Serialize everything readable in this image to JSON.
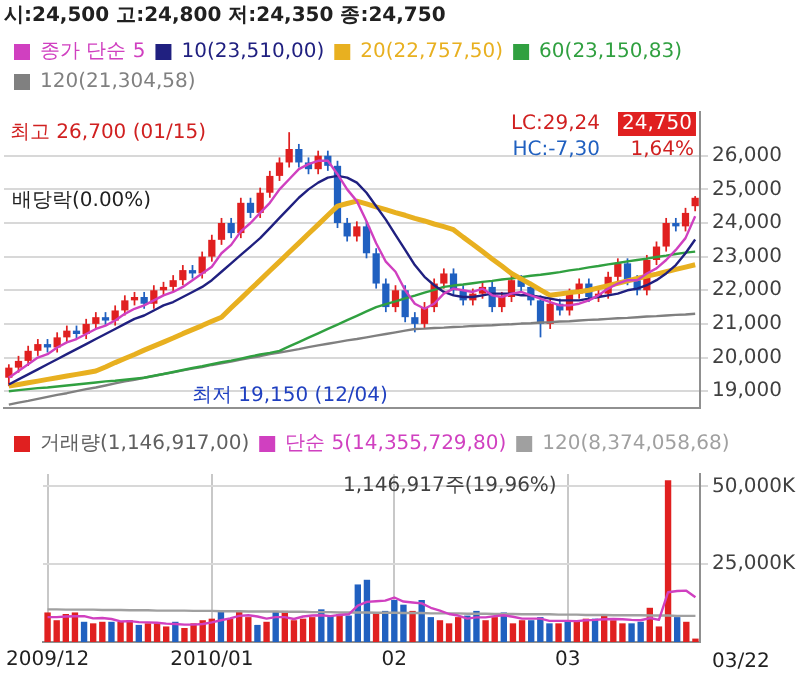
{
  "chart_data": [
    {
      "type": "candlestick",
      "title": "시:24,500 고:24,800 저:24,350 종:24,750",
      "categories": [
        null,
        null,
        null,
        null,
        null,
        null,
        null,
        null,
        null,
        null,
        null,
        null,
        null,
        null,
        null,
        null,
        null,
        null,
        null,
        null,
        null,
        null,
        null,
        null,
        null,
        null,
        null,
        null,
        null,
        null,
        null,
        null,
        null,
        null,
        null,
        null,
        null,
        null,
        null,
        null,
        null,
        null,
        null,
        null,
        null,
        null,
        null,
        null,
        null,
        null,
        null,
        null,
        null,
        null,
        null,
        null,
        null,
        null,
        null,
        null,
        null,
        null,
        null,
        null,
        null,
        null,
        null,
        null,
        null,
        null,
        null,
        null
      ],
      "ohlc": [
        [
          19400,
          19800,
          19150,
          19700
        ],
        [
          19700,
          20050,
          19550,
          19900
        ],
        [
          19900,
          20350,
          19750,
          20200
        ],
        [
          20200,
          20550,
          20050,
          20400
        ],
        [
          20400,
          20550,
          20150,
          20300
        ],
        [
          20300,
          20750,
          20150,
          20600
        ],
        [
          20600,
          20950,
          20450,
          20800
        ],
        [
          20800,
          20950,
          20550,
          20700
        ],
        [
          20700,
          21150,
          20550,
          21000
        ],
        [
          21000,
          21350,
          20850,
          21200
        ],
        [
          21200,
          21350,
          20950,
          21100
        ],
        [
          21100,
          21550,
          20950,
          21400
        ],
        [
          21400,
          21850,
          21250,
          21700
        ],
        [
          21700,
          21950,
          21550,
          21800
        ],
        [
          21800,
          21950,
          21450,
          21600
        ],
        [
          21600,
          22150,
          21450,
          22000
        ],
        [
          22000,
          22250,
          21850,
          22100
        ],
        [
          22100,
          22450,
          21950,
          22300
        ],
        [
          22300,
          22750,
          22150,
          22600
        ],
        [
          22600,
          22750,
          22350,
          22500
        ],
        [
          22500,
          23150,
          22350,
          23000
        ],
        [
          23000,
          23650,
          22850,
          23500
        ],
        [
          23500,
          24150,
          23350,
          24000
        ],
        [
          24000,
          24150,
          23550,
          23700
        ],
        [
          23700,
          24750,
          23550,
          24600
        ],
        [
          24600,
          24750,
          24150,
          24300
        ],
        [
          24300,
          25050,
          24150,
          24900
        ],
        [
          24900,
          25550,
          24750,
          25400
        ],
        [
          25400,
          25950,
          25250,
          25800
        ],
        [
          25800,
          26700,
          25650,
          26200
        ],
        [
          26200,
          26350,
          25650,
          25800
        ],
        [
          25800,
          25950,
          25450,
          25600
        ],
        [
          25600,
          26150,
          25450,
          26000
        ],
        [
          26000,
          26150,
          25550,
          25700
        ],
        [
          25700,
          25850,
          23850,
          24000
        ],
        [
          24000,
          24150,
          23450,
          23600
        ],
        [
          23600,
          24050,
          23450,
          23900
        ],
        [
          23900,
          24050,
          22950,
          23100
        ],
        [
          23100,
          23250,
          22050,
          22200
        ],
        [
          22200,
          22350,
          21350,
          21500
        ],
        [
          21500,
          22150,
          21350,
          22000
        ],
        [
          22000,
          22150,
          21050,
          21200
        ],
        [
          21200,
          21350,
          20750,
          21000
        ],
        [
          21000,
          21650,
          20850,
          21500
        ],
        [
          21500,
          22350,
          21350,
          22200
        ],
        [
          22200,
          22650,
          22050,
          22500
        ],
        [
          22500,
          22650,
          21850,
          22000
        ],
        [
          22000,
          22150,
          21550,
          21700
        ],
        [
          21700,
          22050,
          21550,
          21900
        ],
        [
          21900,
          22250,
          21750,
          22100
        ],
        [
          22100,
          22250,
          21350,
          21500
        ],
        [
          21500,
          21950,
          21350,
          21800
        ],
        [
          21800,
          22450,
          21650,
          22300
        ],
        [
          22300,
          22450,
          21950,
          22100
        ],
        [
          22100,
          22250,
          21550,
          21700
        ],
        [
          21700,
          21850,
          20600,
          21000
        ],
        [
          21000,
          21750,
          20850,
          21600
        ],
        [
          21600,
          21750,
          21250,
          21400
        ],
        [
          21400,
          22050,
          21250,
          21900
        ],
        [
          21900,
          22350,
          21750,
          22200
        ],
        [
          22200,
          22350,
          21650,
          21800
        ],
        [
          21800,
          22050,
          21650,
          21900
        ],
        [
          21900,
          22550,
          21750,
          22400
        ],
        [
          22400,
          22950,
          22250,
          22800
        ],
        [
          22800,
          22950,
          22150,
          22300
        ],
        [
          22300,
          22450,
          21850,
          22000
        ],
        [
          22000,
          23050,
          21850,
          22900
        ],
        [
          22900,
          23450,
          22750,
          23300
        ],
        [
          23300,
          24150,
          23150,
          24000
        ],
        [
          24000,
          24150,
          23750,
          23900
        ],
        [
          23900,
          24450,
          23750,
          24300
        ],
        [
          24500,
          24800,
          24350,
          24750
        ]
      ],
      "colors": [
        "#e02020",
        "#e02020",
        "#e02020",
        "#e02020",
        "#2060c0",
        "#e02020",
        "#e02020",
        "#2060c0",
        "#e02020",
        "#e02020",
        "#2060c0",
        "#e02020",
        "#e02020",
        "#e02020",
        "#2060c0",
        "#e02020",
        "#e02020",
        "#e02020",
        "#e02020",
        "#2060c0",
        "#e02020",
        "#e02020",
        "#e02020",
        "#2060c0",
        "#e02020",
        "#2060c0",
        "#e02020",
        "#e02020",
        "#e02020",
        "#e02020",
        "#2060c0",
        "#2060c0",
        "#e02020",
        "#2060c0",
        "#2060c0",
        "#2060c0",
        "#e02020",
        "#2060c0",
        "#2060c0",
        "#2060c0",
        "#e02020",
        "#2060c0",
        "#2060c0",
        "#e02020",
        "#e02020",
        "#e02020",
        "#2060c0",
        "#2060c0",
        "#e02020",
        "#e02020",
        "#2060c0",
        "#e02020",
        "#e02020",
        "#2060c0",
        "#2060c0",
        "#2060c0",
        "#e02020",
        "#2060c0",
        "#e02020",
        "#e02020",
        "#2060c0",
        "#e02020",
        "#e02020",
        "#e02020",
        "#2060c0",
        "#2060c0",
        "#e02020",
        "#e02020",
        "#e02020",
        "#2060c0",
        "#e02020",
        "#e02020"
      ],
      "series": [
        {
          "type": "line",
          "name": "종가 단순 5",
          "color": "#d040c0",
          "values": [
            19400,
            19600,
            19800,
            20000,
            20100,
            20300,
            20450,
            20550,
            20700,
            20850,
            20950,
            21100,
            21300,
            21450,
            21550,
            21700,
            21850,
            21950,
            22100,
            22300,
            22500,
            22700,
            23100,
            23350,
            23750,
            24000,
            24300,
            24600,
            25000,
            25300,
            25600,
            25750,
            25850,
            25850,
            25450,
            25000,
            24650,
            24050,
            23400,
            22850,
            22550,
            22000,
            21600,
            21450,
            21600,
            21900,
            22050,
            22000,
            21950,
            22050,
            21850,
            21800,
            21900,
            21950,
            21850,
            21750,
            21650,
            21550,
            21550,
            21600,
            21700,
            21850,
            22050,
            22200,
            22300,
            22300,
            22500,
            22650,
            22900,
            23200,
            23550,
            24200
          ]
        },
        {
          "type": "line",
          "name": "10(23,510,00)",
          "color": "#202080",
          "values": [
            19200,
            19350,
            19500,
            19650,
            19800,
            19950,
            20100,
            20250,
            20400,
            20550,
            20700,
            20850,
            21000,
            21150,
            21250,
            21400,
            21550,
            21650,
            21800,
            21950,
            22100,
            22300,
            22550,
            22800,
            23050,
            23300,
            23550,
            23850,
            24150,
            24450,
            24750,
            25000,
            25200,
            25350,
            25400,
            25350,
            25200,
            24900,
            24500,
            24100,
            23650,
            23200,
            22750,
            22400,
            22150,
            21950,
            21850,
            21800,
            21800,
            21850,
            21900,
            21900,
            21900,
            21850,
            21850,
            21800,
            21750,
            21700,
            21700,
            21700,
            21750,
            21800,
            21850,
            21900,
            22000,
            22050,
            22150,
            22300,
            22500,
            22750,
            23100,
            23510
          ]
        },
        {
          "type": "line",
          "name": "20(22,757,50)",
          "color": "#e8b020",
          "values": [
            19150,
            19200,
            19250,
            19300,
            19350,
            19400,
            19450,
            19500,
            19550,
            19600,
            19720,
            19850,
            19970,
            20090,
            20220,
            20340,
            20460,
            20580,
            20710,
            20830,
            20950,
            21080,
            21200,
            21480,
            21750,
            22030,
            22300,
            22580,
            22850,
            23130,
            23400,
            23680,
            23950,
            24230,
            24500,
            24580,
            24650,
            24570,
            24480,
            24400,
            24310,
            24230,
            24140,
            24060,
            23970,
            23890,
            23800,
            23580,
            23370,
            23150,
            22930,
            22720,
            22500,
            22340,
            22180,
            22010,
            21850,
            21890,
            21930,
            21960,
            22000,
            22070,
            22140,
            22210,
            22280,
            22350,
            22420,
            22480,
            22550,
            22620,
            22690,
            22760
          ]
        },
        {
          "type": "line",
          "name": "60(23,150,83)",
          "color": "#30a040",
          "values": [
            19000,
            19030,
            19060,
            19090,
            19110,
            19140,
            19170,
            19200,
            19230,
            19260,
            19290,
            19310,
            19340,
            19370,
            19400,
            19460,
            19510,
            19570,
            19630,
            19690,
            19740,
            19800,
            19860,
            19910,
            19970,
            20030,
            20090,
            20140,
            20200,
            20330,
            20460,
            20590,
            20720,
            20850,
            20980,
            21110,
            21240,
            21370,
            21500,
            21590,
            21670,
            21760,
            21840,
            21930,
            22010,
            22100,
            22140,
            22170,
            22210,
            22250,
            22280,
            22320,
            22350,
            22390,
            22430,
            22460,
            22500,
            22540,
            22590,
            22630,
            22680,
            22720,
            22770,
            22810,
            22860,
            22900,
            22940,
            22990,
            23030,
            23080,
            23120,
            23150
          ]
        },
        {
          "type": "line",
          "name": "120(21,304,58)",
          "color": "#808080",
          "values": [
            18600,
            18660,
            18710,
            18770,
            18830,
            18890,
            18940,
            19000,
            19060,
            19110,
            19170,
            19230,
            19290,
            19340,
            19400,
            19450,
            19510,
            19560,
            19620,
            19670,
            19720,
            19780,
            19830,
            19880,
            19940,
            19990,
            20040,
            20100,
            20150,
            20200,
            20250,
            20310,
            20360,
            20410,
            20460,
            20510,
            20550,
            20600,
            20650,
            20700,
            20750,
            20800,
            20850,
            20860,
            20880,
            20890,
            20910,
            20920,
            20940,
            20950,
            20960,
            20980,
            20990,
            21010,
            21020,
            21040,
            21050,
            21070,
            21080,
            21100,
            21120,
            21130,
            21150,
            21170,
            21180,
            21200,
            21220,
            21230,
            21250,
            21270,
            21280,
            21300
          ]
        }
      ],
      "ylim": [
        18500,
        27300
      ],
      "yticks": [
        {
          "value": 19000,
          "label": "19,000"
        },
        {
          "value": 20000,
          "label": "20,000"
        },
        {
          "value": 21000,
          "label": "21,000"
        },
        {
          "value": 22000,
          "label": "22,000"
        },
        {
          "value": 23000,
          "label": "23,000"
        },
        {
          "value": 24000,
          "label": "24,000"
        },
        {
          "value": 25000,
          "label": "25,000"
        },
        {
          "value": 26000,
          "label": "26,000"
        }
      ],
      "grid": true,
      "legend": "top",
      "marker": "none",
      "tick_labels": "y",
      "annotations": [
        "최고 26,700 (01/15)",
        "최저 19,150 (12/04)",
        "배당락(0.00%)",
        "LC:29,24",
        "HC:-7,30",
        "24,750",
        "1,64%"
      ]
    },
    {
      "type": "bar",
      "categories": [
        "2009/12",
        null,
        null,
        null,
        null,
        null,
        null,
        null,
        null,
        null,
        null,
        null,
        null,
        null,
        null,
        null,
        null,
        null,
        "2010/01",
        null,
        null,
        null,
        null,
        null,
        null,
        null,
        null,
        null,
        null,
        null,
        null,
        null,
        null,
        null,
        null,
        null,
        null,
        null,
        "02",
        null,
        null,
        null,
        null,
        null,
        null,
        null,
        null,
        null,
        null,
        null,
        null,
        null,
        null,
        null,
        null,
        null,
        null,
        "03",
        null,
        null,
        null,
        null,
        null,
        null,
        null,
        null,
        null,
        null,
        null,
        null,
        null,
        null
      ],
      "series": [
        {
          "type": "bar",
          "name": "거래량(1,146,917,00)",
          "values": [
            9500,
            7000,
            9000,
            9500,
            6500,
            6000,
            6500,
            6500,
            6500,
            7000,
            5500,
            6000,
            6000,
            5000,
            6500,
            4500,
            6000,
            7000,
            7500,
            10000,
            7500,
            10000,
            8000,
            5500,
            6500,
            10000,
            10000,
            7000,
            7500,
            8000,
            10500,
            8500,
            9000,
            8500,
            18500,
            20000,
            9500,
            10000,
            13500,
            12000,
            10000,
            13500,
            8000,
            7000,
            6000,
            8000,
            8500,
            10000,
            7000,
            8000,
            9500,
            6000,
            7000,
            7000,
            8000,
            6000,
            6000,
            7000,
            6500,
            7500,
            7500,
            8500,
            7000,
            6000,
            6000,
            6500,
            11000,
            5000,
            52000,
            8000,
            6500,
            1100
          ],
          "colors": [
            "#e02020",
            "#e02020",
            "#e02020",
            "#e02020",
            "#2060c0",
            "#e02020",
            "#e02020",
            "#2060c0",
            "#e02020",
            "#e02020",
            "#2060c0",
            "#e02020",
            "#e02020",
            "#e02020",
            "#2060c0",
            "#e02020",
            "#e02020",
            "#e02020",
            "#e02020",
            "#2060c0",
            "#e02020",
            "#e02020",
            "#e02020",
            "#2060c0",
            "#e02020",
            "#2060c0",
            "#e02020",
            "#e02020",
            "#e02020",
            "#e02020",
            "#2060c0",
            "#2060c0",
            "#e02020",
            "#2060c0",
            "#2060c0",
            "#2060c0",
            "#e02020",
            "#2060c0",
            "#2060c0",
            "#2060c0",
            "#e02020",
            "#2060c0",
            "#2060c0",
            "#e02020",
            "#e02020",
            "#e02020",
            "#2060c0",
            "#2060c0",
            "#e02020",
            "#e02020",
            "#2060c0",
            "#e02020",
            "#e02020",
            "#2060c0",
            "#2060c0",
            "#2060c0",
            "#e02020",
            "#2060c0",
            "#e02020",
            "#e02020",
            "#2060c0",
            "#e02020",
            "#e02020",
            "#e02020",
            "#2060c0",
            "#2060c0",
            "#e02020",
            "#e02020",
            "#e02020",
            "#2060c0",
            "#e02020",
            "#e02020"
          ]
        },
        {
          "type": "line",
          "name": "단순 5(14,355,729,80)",
          "color": "#d040c0",
          "values": [
            8000,
            8000,
            8200,
            8300,
            8300,
            7600,
            7700,
            7400,
            6600,
            6700,
            6400,
            6300,
            6200,
            5900,
            5800,
            5600,
            5600,
            5800,
            6300,
            7000,
            7600,
            8400,
            8600,
            8200,
            7500,
            8000,
            8000,
            7400,
            8200,
            8500,
            8600,
            8300,
            8700,
            8900,
            11700,
            12900,
            13100,
            13300,
            14300,
            13000,
            12700,
            12400,
            11000,
            10100,
            9000,
            8500,
            7500,
            7900,
            7900,
            8300,
            8600,
            8100,
            7500,
            7500,
            7500,
            6800,
            6800,
            6800,
            6700,
            7000,
            7100,
            7300,
            7400,
            7300,
            7100,
            7000,
            7700,
            7100,
            16000,
            16400,
            16500,
            14400
          ]
        },
        {
          "type": "line",
          "name": "120(8,374,058,68)",
          "color": "#a0a0a0",
          "values": [
            10500,
            10500,
            10400,
            10400,
            10400,
            10400,
            10300,
            10300,
            10300,
            10200,
            10200,
            10200,
            10100,
            10100,
            10100,
            10100,
            10000,
            10000,
            10000,
            9900,
            9900,
            9900,
            9800,
            9800,
            9800,
            9800,
            9700,
            9700,
            9700,
            9600,
            9600,
            9600,
            9500,
            9500,
            9500,
            9500,
            9400,
            9400,
            9400,
            9300,
            9300,
            9300,
            9200,
            9200,
            9200,
            9200,
            9100,
            9100,
            9100,
            9000,
            9000,
            9000,
            8900,
            8900,
            8900,
            8900,
            8800,
            8800,
            8800,
            8700,
            8700,
            8700,
            8600,
            8600,
            8600,
            8600,
            8500,
            8500,
            8500,
            8400,
            8400,
            8400
          ]
        }
      ],
      "ylim": [
        0,
        54000
      ],
      "yticks": [
        {
          "value": 25000,
          "label": "25,000K"
        },
        {
          "value": 50000,
          "label": "50,000K"
        }
      ],
      "grid": true,
      "legend": "top",
      "marker": "none",
      "annotations": [
        "1,146,917주(19,96%)",
        "03/22"
      ]
    }
  ]
}
